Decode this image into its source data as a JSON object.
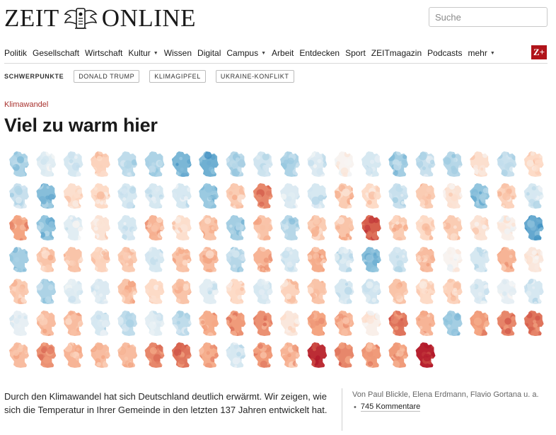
{
  "header": {
    "logo_left": "ZEIT",
    "logo_right": "ONLINE",
    "search_placeholder": "Suche"
  },
  "nav": {
    "items": [
      {
        "label": "Politik",
        "dropdown": false
      },
      {
        "label": "Gesellschaft",
        "dropdown": false
      },
      {
        "label": "Wirtschaft",
        "dropdown": false
      },
      {
        "label": "Kultur",
        "dropdown": true
      },
      {
        "label": "Wissen",
        "dropdown": false
      },
      {
        "label": "Digital",
        "dropdown": false
      },
      {
        "label": "Campus",
        "dropdown": true
      },
      {
        "label": "Arbeit",
        "dropdown": false
      },
      {
        "label": "Entdecken",
        "dropdown": false
      },
      {
        "label": "Sport",
        "dropdown": false
      },
      {
        "label": "ZEITmagazin",
        "dropdown": false
      },
      {
        "label": "Podcasts",
        "dropdown": false
      },
      {
        "label": "mehr",
        "dropdown": true
      }
    ],
    "zplus": "Z+"
  },
  "schwerpunkte": {
    "label": "SCHWERPUNKTE",
    "tags": [
      "DONALD TRUMP",
      "KLIMAGIPFEL",
      "UKRAINE-KONFLIKT"
    ]
  },
  "article": {
    "kicker": "Klimawandel",
    "headline": "Viel zu warm hier",
    "summary": "Durch den Klimawandel hat sich Deutschland deutlich erwärmt. Wir zeigen, wie sich die Temperatur in Ihrer Gemeinde in den letzten 137 Jahren entwickelt hat.",
    "byline": "Von Paul Blickle, Elena Erdmann, Flavio Gortana u. a.",
    "comments": "745 Kommentare"
  },
  "map_grid": {
    "columns": 20,
    "anomalies": [
      -0.55,
      -0.2,
      -0.3,
      0.4,
      -0.45,
      -0.55,
      -0.8,
      -0.85,
      -0.5,
      -0.35,
      -0.55,
      -0.25,
      0.05,
      -0.3,
      -0.6,
      -0.4,
      -0.5,
      0.3,
      -0.4,
      0.35,
      -0.4,
      -0.75,
      0.3,
      0.35,
      -0.3,
      -0.3,
      -0.3,
      -0.65,
      0.45,
      0.85,
      -0.25,
      -0.3,
      0.45,
      0.35,
      -0.4,
      0.45,
      0.25,
      -0.7,
      0.4,
      -0.3,
      0.7,
      -0.7,
      -0.2,
      0.25,
      -0.3,
      0.6,
      0.3,
      0.5,
      -0.6,
      0.5,
      -0.5,
      0.45,
      0.5,
      1.05,
      0.45,
      0.35,
      0.45,
      0.25,
      0.1,
      -0.9,
      -0.6,
      0.5,
      0.5,
      0.4,
      0.45,
      -0.3,
      0.5,
      0.55,
      -0.5,
      0.6,
      -0.3,
      0.65,
      -0.35,
      -0.75,
      -0.35,
      0.55,
      0.05,
      -0.3,
      0.6,
      0.2,
      0.45,
      -0.55,
      -0.2,
      -0.25,
      0.5,
      0.35,
      0.5,
      -0.2,
      0.35,
      -0.3,
      0.4,
      0.5,
      -0.3,
      -0.35,
      0.5,
      0.35,
      0.4,
      -0.25,
      -0.15,
      -0.3,
      -0.15,
      0.55,
      0.55,
      -0.3,
      -0.45,
      -0.2,
      -0.45,
      0.65,
      0.75,
      0.8,
      0.2,
      0.7,
      0.6,
      0.1,
      0.95,
      0.6,
      -0.6,
      0.75,
      0.85,
      0.95,
      0.55,
      0.8,
      0.6,
      0.55,
      0.55,
      0.85,
      0.95,
      0.65,
      -0.3,
      0.75,
      0.6,
      1.3,
      0.85,
      0.75,
      0.75,
      1.35,
      null,
      null,
      null,
      null
    ]
  }
}
